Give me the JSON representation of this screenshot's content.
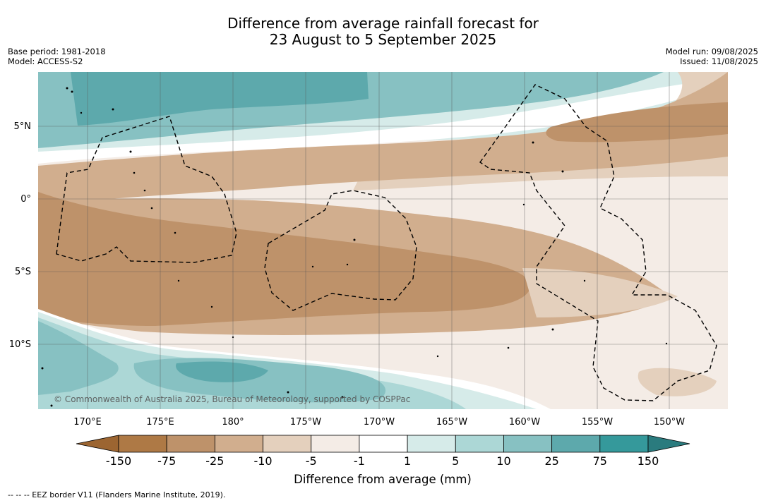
{
  "title_line1": "Difference from average rainfall forecast for",
  "title_line2": "23 August to 5 September 2025",
  "base_period": "Base period: 1981-2018",
  "model": "Model: ACCESS-S2",
  "model_run": "Model run: 09/08/2025",
  "issued": "Issued: 11/08/2025",
  "copyright": "© Commonwealth of Australia 2025, Bureau of Meteorology, supported by COSPPac",
  "lon_labels": [
    "170°E",
    "175°E",
    "180°",
    "175°W",
    "170°W",
    "165°W",
    "160°W",
    "155°W",
    "150°W"
  ],
  "lat_labels": [
    "5°N",
    "0°",
    "5°S",
    "10°S"
  ],
  "colorbar": {
    "title": "Difference from average (mm)",
    "tick_labels": [
      "-150",
      "-75",
      "-25",
      "-10",
      "-5",
      "-1",
      "1",
      "5",
      "10",
      "25",
      "75",
      "150"
    ],
    "colors": [
      "#9c6531",
      "#ae7945",
      "#be926a",
      "#d1ae8e",
      "#e4d0bd",
      "#f4ece6",
      "#ffffff",
      "#d6ebe9",
      "#acd7d6",
      "#87c1c2",
      "#5da9ac",
      "#35999b",
      "#2a7b7e"
    ]
  },
  "footnote": "--  --  -- EEZ border V11 (Flanders Marine Institute, 2019)."
}
